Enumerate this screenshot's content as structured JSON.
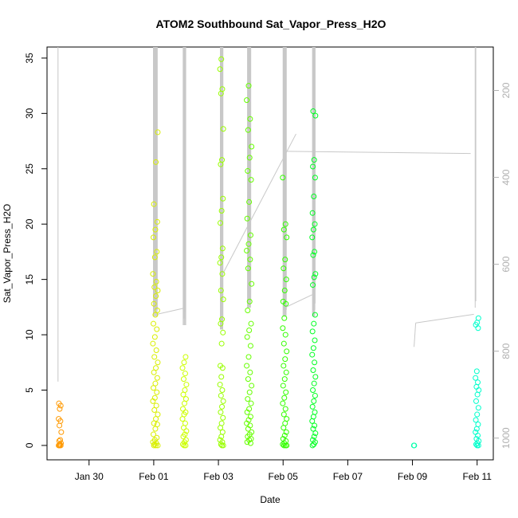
{
  "chart_data": {
    "type": "scatter",
    "title": "ATOM2 Southbound Sat_Vapor_Press_H2O",
    "xlabel": "Date",
    "ylabel": "Sat_Vapor_Press_H2O",
    "x_ticks": [
      "Jan 30",
      "Feb 01",
      "Feb 03",
      "Feb 05",
      "Feb 07",
      "Feb 09",
      "Feb 11"
    ],
    "x_tick_days": [
      30,
      32,
      34,
      36,
      38,
      40,
      42
    ],
    "xlim_days": [
      28.7,
      42.5
    ],
    "y_ticks": [
      0,
      5,
      10,
      15,
      20,
      25,
      30,
      35
    ],
    "ylim": [
      -1.3,
      36
    ],
    "secondary_axis": {
      "ticks": [
        200,
        400,
        600,
        800,
        1000
      ],
      "range_at_plot_top": 100,
      "range_at_plot_bottom": 1050,
      "color": "#b0b0b0",
      "note_series": "pressure trace (grey line)"
    },
    "grid": false,
    "legend": "none",
    "clusters": [
      {
        "day": 29.1,
        "spread": 0.08,
        "color": "#ff9900",
        "values": [
          0,
          0,
          0,
          0,
          0.1,
          0.2,
          0.4,
          0.5,
          1.2,
          1.8,
          2.2,
          2.4,
          3.3,
          3.6,
          3.8
        ]
      },
      {
        "day": 32.05,
        "spread": 0.15,
        "color": "#d9ef00",
        "values": [
          0,
          0,
          0,
          0.1,
          0.2,
          0.3,
          0.5,
          0.7,
          1.0,
          1.5,
          1.9,
          2.0,
          2.4,
          2.8,
          3.2,
          3.6,
          4.0,
          4.3,
          4.8,
          5.2,
          5.6,
          6.1,
          6.6,
          7.0,
          7.5,
          8.0,
          8.6,
          9.2,
          9.8,
          10.5,
          11.0,
          11.8,
          12.2,
          12.8,
          13.5,
          14.0,
          14.3,
          14.8,
          15.5,
          17.0,
          17.5,
          18.8,
          19.5,
          20.2,
          21.8,
          25.6,
          28.3
        ]
      },
      {
        "day": 32.95,
        "spread": 0.12,
        "color": "#ccff00",
        "values": [
          0,
          0,
          0.1,
          0.3,
          0.5,
          0.8,
          1.0,
          1.3,
          1.6,
          2.0,
          2.4,
          2.8,
          3.0,
          3.3,
          3.8,
          4.2,
          4.6,
          5.0,
          5.5,
          6.0,
          6.5,
          7.0,
          7.5,
          8.0
        ]
      },
      {
        "day": 34.1,
        "spread": 0.1,
        "color": "#99ff00",
        "values": [
          0,
          0,
          0.1,
          0.3,
          0.5,
          0.8,
          1.2,
          1.6,
          2.0,
          2.5,
          3.0,
          3.5,
          4.0,
          4.5,
          5.0,
          5.5,
          6.2,
          7.0,
          7.2,
          9.2,
          10.2,
          11.0,
          11.4,
          13.2,
          14.0,
          15.5,
          16.5,
          17.0,
          17.8,
          20.1,
          21.2,
          22.3,
          25.4,
          25.8,
          28.6,
          31.8,
          32.2,
          34.0,
          34.9
        ]
      },
      {
        "day": 34.95,
        "spread": 0.15,
        "color": "#66ff00",
        "values": [
          0.2,
          0.3,
          0.5,
          0.6,
          0.8,
          1.0,
          1.2,
          1.5,
          1.8,
          2.0,
          2.3,
          2.6,
          3.0,
          3.3,
          3.8,
          4.2,
          4.8,
          5.4,
          6.0,
          6.6,
          7.2,
          8.0,
          9.0,
          9.8,
          10.4,
          11.0,
          12.2,
          13.0,
          14.6,
          16.0,
          16.8,
          17.6,
          18.2,
          19.0,
          20.5,
          22.0,
          24.0,
          24.8,
          26.0,
          27.0,
          28.5,
          29.5,
          31.2,
          32.5
        ]
      },
      {
        "day": 36.05,
        "spread": 0.12,
        "color": "#33ff00",
        "values": [
          0,
          0,
          0,
          0.1,
          0.2,
          0.4,
          0.6,
          0.9,
          1.2,
          1.6,
          2.0,
          2.4,
          2.8,
          3.3,
          3.8,
          4.3,
          4.8,
          5.4,
          6.0,
          6.6,
          7.2,
          7.8,
          8.5,
          9.2,
          10.0,
          10.6,
          11.5,
          12.8,
          13.0,
          14.0,
          15.0,
          16.0,
          16.8,
          18.8,
          19.5,
          20.0,
          24.2
        ]
      },
      {
        "day": 36.95,
        "spread": 0.1,
        "color": "#00ff22",
        "values": [
          0,
          0.1,
          0.3,
          0.5,
          0.8,
          1.1,
          1.5,
          1.8,
          2.2,
          2.6,
          3.0,
          3.5,
          4.0,
          4.5,
          5.0,
          5.6,
          6.2,
          6.8,
          7.5,
          8.2,
          8.8,
          9.5,
          10.3,
          11.0,
          11.8,
          14.5,
          15.2,
          15.5,
          17.2,
          17.5,
          18.8,
          19.5,
          20.0,
          21.0,
          22.5,
          24.2,
          25.2,
          25.8,
          29.8,
          30.2
        ]
      },
      {
        "day": 40.05,
        "spread": 0.03,
        "color": "#00ffaa",
        "values": [
          0,
          0
        ]
      },
      {
        "day": 42.0,
        "spread": 0.1,
        "color": "#00ffcc",
        "values": [
          0,
          0,
          0.1,
          0.2,
          0.4,
          0.6,
          0.9,
          1.2,
          1.5,
          1.9,
          2.3,
          2.8,
          3.4,
          4.0,
          4.6,
          5.0,
          5.3,
          5.7,
          6.1,
          6.7,
          10.6,
          10.9,
          11.1,
          11.5
        ]
      }
    ]
  }
}
